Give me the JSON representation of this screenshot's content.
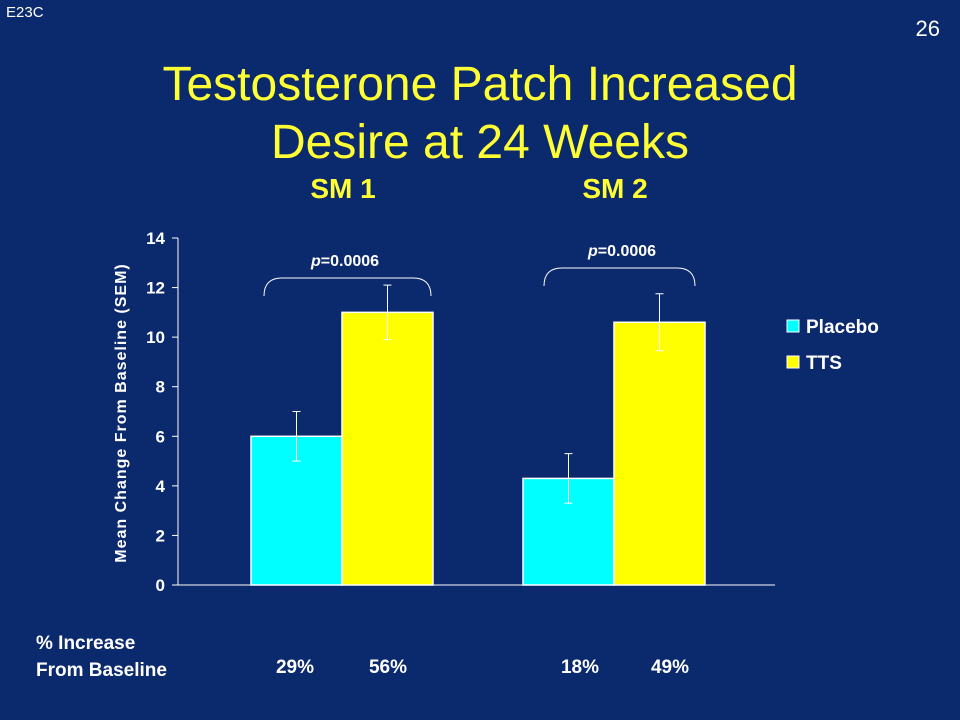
{
  "slide": {
    "code": "E23C",
    "number": "26",
    "title_lines": [
      "Testosterone Patch Increased",
      "Desire at 24 Weeks"
    ]
  },
  "colors": {
    "background": "#0b2a6e",
    "title": "#ffff33",
    "placebo": "#00ffff",
    "tts": "#ffff00",
    "text": "#ffffff"
  },
  "footer": {
    "label_lines": [
      "% Increase",
      "From Baseline"
    ],
    "values": [
      "29%",
      "56%",
      "18%",
      "49%"
    ]
  },
  "chart_data": {
    "type": "bar",
    "title": "",
    "categories": [
      "SM 1",
      "SM 2"
    ],
    "ylabel": "Mean Change From Baseline (SEM)",
    "xlabel": "",
    "ylim": [
      0,
      14
    ],
    "yticks": [
      0,
      2,
      4,
      6,
      8,
      10,
      12,
      14
    ],
    "legend_position": "right",
    "series": [
      {
        "name": "Placebo",
        "values": [
          6.0,
          4.3
        ],
        "err": [
          1.0,
          1.0
        ]
      },
      {
        "name": "TTS",
        "values": [
          11.0,
          10.6
        ],
        "err": [
          1.1,
          1.15
        ]
      }
    ],
    "annotations": [
      {
        "group": 0,
        "prefix": "p",
        "text": "=0.0006"
      },
      {
        "group": 1,
        "prefix": "p",
        "text": "=0.0006"
      }
    ]
  }
}
